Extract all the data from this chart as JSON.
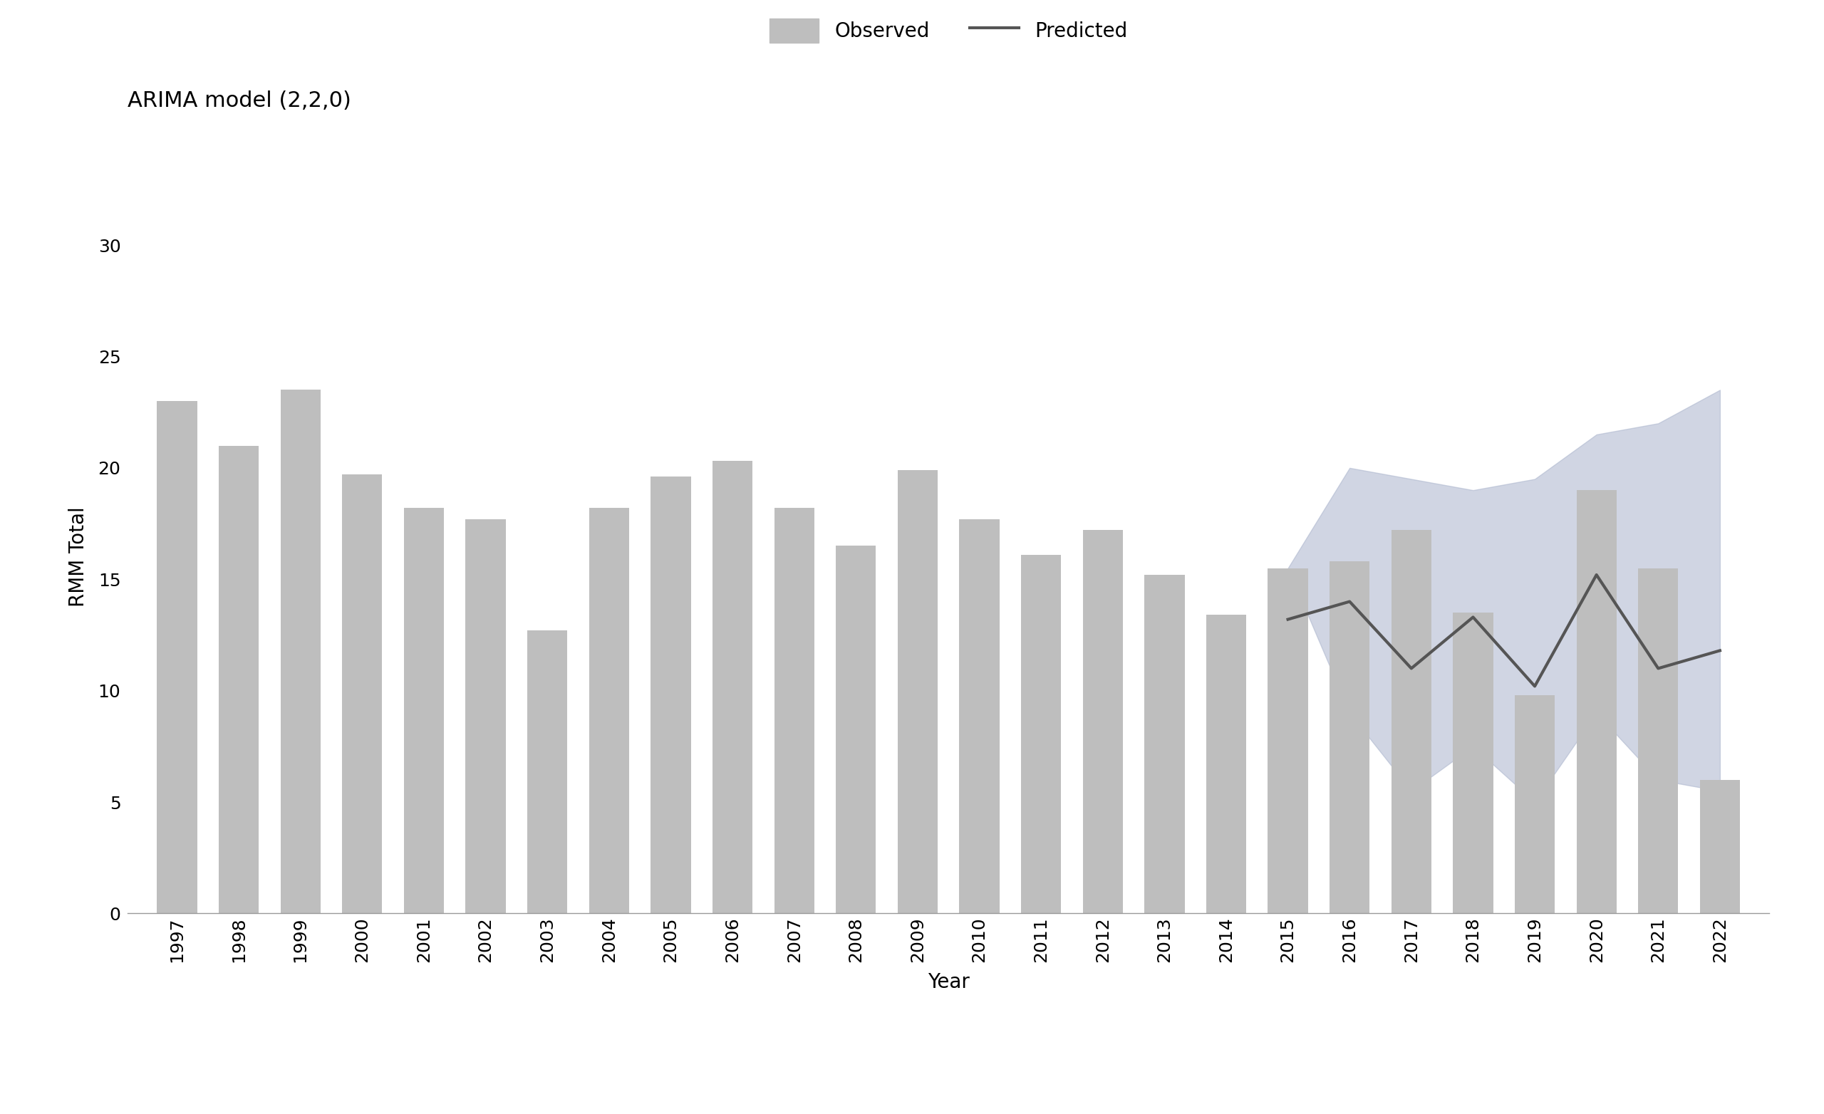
{
  "title": "ARIMA model (2,2,0)",
  "xlabel": "Year",
  "ylabel": "RMM Total",
  "years": [
    1997,
    1998,
    1999,
    2000,
    2001,
    2002,
    2003,
    2004,
    2005,
    2006,
    2007,
    2008,
    2009,
    2010,
    2011,
    2012,
    2013,
    2014,
    2015,
    2016,
    2017,
    2018,
    2019,
    2020,
    2021,
    2022
  ],
  "observed": [
    23.0,
    21.0,
    23.5,
    19.7,
    18.2,
    17.7,
    12.7,
    18.2,
    19.6,
    20.3,
    18.2,
    16.5,
    19.9,
    17.7,
    16.1,
    17.2,
    15.2,
    13.4,
    15.5,
    15.8,
    17.2,
    13.5,
    9.8,
    19.0,
    15.5,
    6.0
  ],
  "predicted": [
    null,
    null,
    null,
    null,
    null,
    null,
    null,
    null,
    null,
    null,
    null,
    null,
    null,
    null,
    null,
    null,
    null,
    null,
    13.2,
    14.0,
    11.0,
    13.3,
    10.2,
    15.2,
    11.0,
    11.8
  ],
  "ci_upper": [
    null,
    null,
    null,
    null,
    null,
    null,
    null,
    null,
    null,
    null,
    null,
    null,
    null,
    null,
    null,
    null,
    null,
    null,
    15.5,
    20.0,
    19.5,
    19.0,
    19.5,
    21.5,
    22.0,
    23.5
  ],
  "ci_lower": [
    null,
    null,
    null,
    null,
    null,
    null,
    null,
    null,
    null,
    null,
    null,
    null,
    null,
    null,
    null,
    null,
    null,
    null,
    15.5,
    9.0,
    5.5,
    7.5,
    5.0,
    9.0,
    6.0,
    5.5
  ],
  "bar_color": "#bebebe",
  "line_color": "#555555",
  "ci_color": "#aab4cc",
  "ci_alpha": 0.55,
  "ylim": [
    0,
    32
  ],
  "yticks": [
    0,
    5,
    10,
    15,
    20,
    25,
    30
  ],
  "background_color": "#ffffff",
  "title_fontsize": 22,
  "label_fontsize": 20,
  "tick_fontsize": 18,
  "legend_fontsize": 20
}
